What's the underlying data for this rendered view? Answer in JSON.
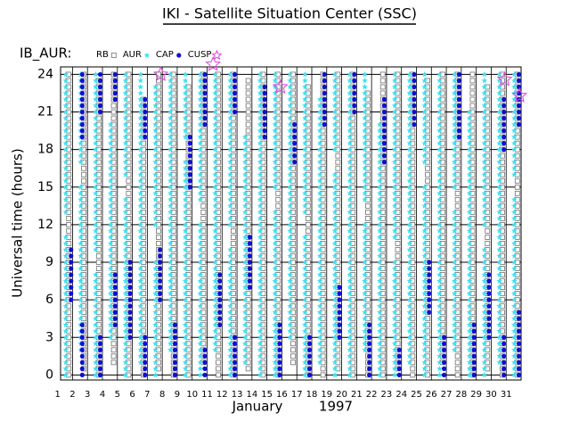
{
  "chart_data": {
    "type": "regions",
    "title": "IKI - Satellite Situation Center (SSC)",
    "legend_title": "IB_AUR:",
    "y_label": "Universal time (hours)",
    "x_label": "January",
    "x_label_year": "1997",
    "xlim": [
      1.2,
      32.0
    ],
    "xticks": [
      1,
      2,
      3,
      4,
      5,
      6,
      7,
      8,
      9,
      10,
      11,
      12,
      13,
      14,
      15,
      16,
      17,
      18,
      19,
      20,
      21,
      22,
      23,
      24,
      25,
      26,
      27,
      28,
      29,
      30,
      31
    ],
    "ylim": [
      -0.4,
      24.6
    ],
    "yticks": [
      0,
      3,
      6,
      9,
      12,
      15,
      18,
      21,
      24
    ],
    "grid": true,
    "series": [
      {
        "name": "RB",
        "color": "#707070",
        "marker": "square",
        "intervals": [
          [
            1.75,
            0,
            24
          ],
          [
            2.75,
            0.5,
            24
          ],
          [
            3.75,
            0,
            23.5
          ],
          [
            4.75,
            1,
            24
          ],
          [
            5.75,
            0,
            24
          ],
          [
            6.75,
            0,
            22
          ],
          [
            7.75,
            0.5,
            24
          ],
          [
            8.75,
            0,
            24
          ],
          [
            9.75,
            0,
            23
          ],
          [
            10.75,
            1,
            24
          ],
          [
            11.75,
            0,
            24
          ],
          [
            12.75,
            0,
            24
          ],
          [
            13.75,
            0.5,
            23.5
          ],
          [
            14.75,
            0,
            24
          ],
          [
            15.75,
            0,
            24
          ],
          [
            16.75,
            1,
            24
          ],
          [
            17.75,
            0,
            23
          ],
          [
            18.75,
            0,
            24
          ],
          [
            19.75,
            0.5,
            24
          ],
          [
            20.75,
            0,
            24
          ],
          [
            21.75,
            0,
            22.5
          ],
          [
            22.75,
            0,
            24
          ],
          [
            23.75,
            0.5,
            24
          ],
          [
            24.75,
            0,
            24
          ],
          [
            25.75,
            0,
            23.5
          ],
          [
            26.75,
            1,
            24
          ],
          [
            27.75,
            0,
            24
          ],
          [
            28.75,
            0,
            24
          ],
          [
            29.75,
            0.5,
            23
          ],
          [
            30.75,
            0,
            24
          ],
          [
            31.75,
            0,
            24
          ]
        ]
      },
      {
        "name": "AUR",
        "color": "#40e0f0",
        "marker": "star",
        "intervals": [
          [
            1.55,
            0,
            11
          ],
          [
            1.55,
            13,
            24
          ],
          [
            2.55,
            2,
            15
          ],
          [
            2.55,
            17,
            24
          ],
          [
            3.55,
            0,
            8
          ],
          [
            3.55,
            10,
            24
          ],
          [
            4.55,
            3,
            20
          ],
          [
            5.55,
            0,
            14
          ],
          [
            5.55,
            16,
            24
          ],
          [
            6.55,
            1,
            24
          ],
          [
            7.55,
            0,
            9
          ],
          [
            7.55,
            12,
            23
          ],
          [
            8.55,
            2,
            24
          ],
          [
            9.55,
            0,
            17
          ],
          [
            9.55,
            19,
            24
          ],
          [
            10.55,
            0,
            12
          ],
          [
            10.55,
            14,
            24
          ],
          [
            11.55,
            2,
            24
          ],
          [
            12.55,
            0,
            10
          ],
          [
            12.55,
            12,
            24
          ],
          [
            13.55,
            1,
            19
          ],
          [
            14.55,
            0,
            24
          ],
          [
            15.55,
            0,
            13
          ],
          [
            15.55,
            15,
            24
          ],
          [
            16.55,
            3,
            24
          ],
          [
            17.55,
            0,
            11
          ],
          [
            17.55,
            13,
            24
          ],
          [
            18.55,
            1,
            22
          ],
          [
            19.55,
            0,
            16
          ],
          [
            19.55,
            18,
            24
          ],
          [
            20.55,
            0,
            24
          ],
          [
            21.55,
            2,
            12
          ],
          [
            21.55,
            14,
            24
          ],
          [
            22.55,
            0,
            20
          ],
          [
            23.55,
            0,
            9
          ],
          [
            23.55,
            11,
            24
          ],
          [
            24.55,
            1,
            24
          ],
          [
            25.55,
            0,
            15
          ],
          [
            25.55,
            17,
            24
          ],
          [
            26.55,
            0,
            24
          ],
          [
            27.55,
            2,
            13
          ],
          [
            27.55,
            15,
            24
          ],
          [
            28.55,
            0,
            21
          ],
          [
            29.55,
            0,
            10
          ],
          [
            29.55,
            12,
            24
          ],
          [
            30.55,
            1,
            24
          ],
          [
            31.55,
            0,
            14
          ],
          [
            31.55,
            16,
            24
          ]
        ]
      },
      {
        "name": "CAP",
        "color": "#1010d0",
        "marker": "dot",
        "intervals": [
          [
            1.9,
            6,
            10
          ],
          [
            2.65,
            0,
            4
          ],
          [
            2.65,
            19,
            24
          ],
          [
            3.85,
            0,
            3
          ],
          [
            3.85,
            21,
            24
          ],
          [
            4.85,
            4,
            8
          ],
          [
            4.85,
            22,
            24
          ],
          [
            5.85,
            3,
            9
          ],
          [
            6.85,
            0,
            3
          ],
          [
            6.85,
            19,
            22
          ],
          [
            7.85,
            6,
            10
          ],
          [
            8.85,
            0,
            4
          ],
          [
            9.85,
            15,
            19
          ],
          [
            10.85,
            0,
            2
          ],
          [
            10.85,
            20,
            24
          ],
          [
            11.85,
            4,
            8
          ],
          [
            12.85,
            0,
            3
          ],
          [
            12.85,
            21,
            24
          ],
          [
            13.85,
            7,
            11
          ],
          [
            14.85,
            19,
            23
          ],
          [
            15.85,
            0,
            4
          ],
          [
            16.85,
            17,
            20
          ],
          [
            17.85,
            0,
            3
          ],
          [
            18.85,
            20,
            24
          ],
          [
            19.85,
            3,
            7
          ],
          [
            20.85,
            21,
            24
          ],
          [
            21.85,
            0,
            4
          ],
          [
            22.85,
            17,
            22
          ],
          [
            23.85,
            0,
            2
          ],
          [
            24.85,
            20,
            24
          ],
          [
            25.85,
            5,
            9
          ],
          [
            26.85,
            0,
            3
          ],
          [
            27.85,
            19,
            24
          ],
          [
            28.85,
            0,
            4
          ],
          [
            29.85,
            3,
            8
          ],
          [
            30.85,
            0,
            3
          ],
          [
            30.85,
            18,
            22
          ],
          [
            31.85,
            0,
            5
          ],
          [
            31.85,
            20,
            24
          ]
        ]
      },
      {
        "name": "CUSP",
        "color": "#e040e0",
        "marker": "open-star",
        "points": [
          [
            7.9,
            24.0
          ],
          [
            11.4,
            24.8
          ],
          [
            15.9,
            23.0
          ],
          [
            30.9,
            23.6
          ],
          [
            31.9,
            22.3
          ]
        ]
      }
    ]
  }
}
